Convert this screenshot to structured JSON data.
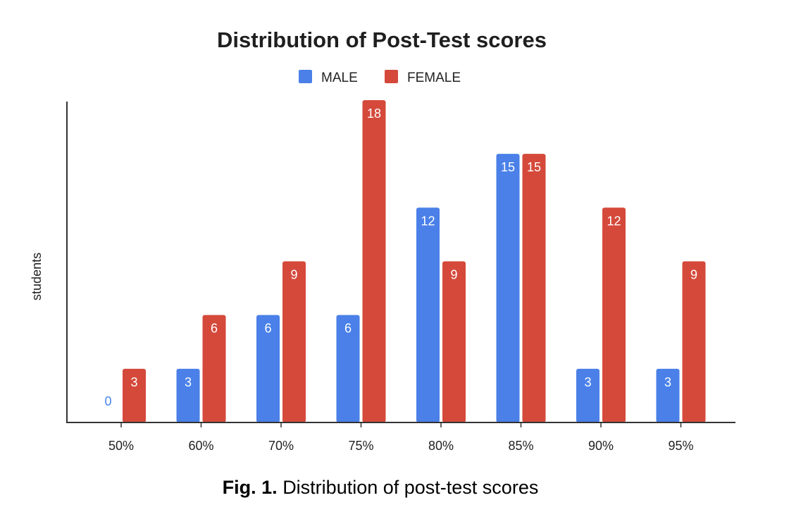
{
  "chart_data": {
    "type": "bar",
    "title": "Distribution of Post-Test scores",
    "xlabel": "",
    "ylabel": "students",
    "ylim": [
      0,
      18
    ],
    "grid": false,
    "legend": "top-center",
    "categories": [
      "50%",
      "60%",
      "70%",
      "75%",
      "80%",
      "85%",
      "90%",
      "95%"
    ],
    "series": [
      {
        "name": "MALE",
        "color": "#4a80e8",
        "values": [
          0,
          3,
          6,
          6,
          12,
          15,
          3,
          3
        ]
      },
      {
        "name": "FEMALE",
        "color": "#d5493b",
        "values": [
          3,
          6,
          9,
          18,
          9,
          15,
          12,
          9
        ]
      }
    ]
  },
  "caption": {
    "prefix": "Fig. 1.",
    "text": "Distribution of post-test scores"
  }
}
